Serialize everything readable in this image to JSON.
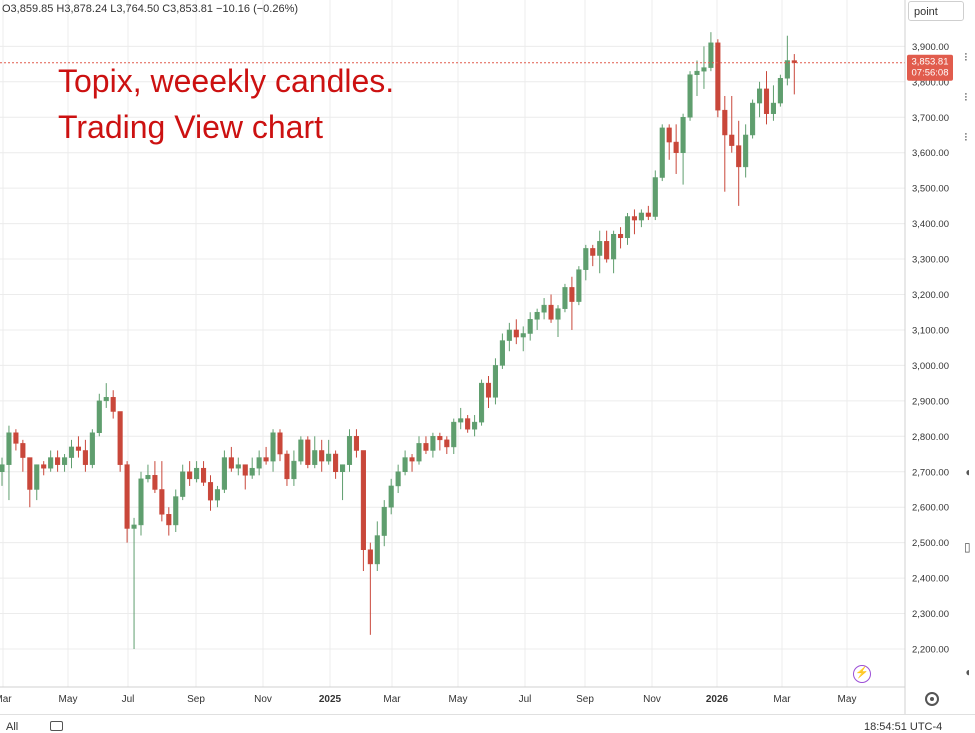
{
  "header": {
    "ohlc": "O3,859.85 H3,878.24 L3,764.50 C3,853.81 −10.16 (−0.26%)"
  },
  "annotation": {
    "line1": "Topix, weeekly candles.",
    "line2": "Trading View chart"
  },
  "price_scale": {
    "unit": "point",
    "last_price": "3,853.81",
    "countdown": "07:56:08"
  },
  "bottom_bar": {
    "range": "All",
    "clock": "18:54:51 UTC-4"
  },
  "colors": {
    "up": "#5f9e6e",
    "down": "#c9473a",
    "last_price_tag": "#e15c4d",
    "grid": "#ececec",
    "annotation": "#cc1111"
  },
  "icons": [
    "calendar-icon",
    "settings-icon",
    "bolt-icon"
  ],
  "chart_data": {
    "type": "candlestick",
    "title": "",
    "ylim": [
      2150,
      3950
    ],
    "yticks": [
      "2,200.00",
      "2,300.00",
      "2,400.00",
      "2,500.00",
      "2,600.00",
      "2,700.00",
      "2,800.00",
      "2,900.00",
      "3,000.00",
      "3,100.00",
      "3,200.00",
      "3,300.00",
      "3,400.00",
      "3,500.00",
      "3,600.00",
      "3,700.00",
      "3,800.00",
      "3,900.00"
    ],
    "xticks": [
      "Mar",
      "May",
      "Jul",
      "Sep",
      "Nov",
      "2025",
      "Mar",
      "May",
      "Jul",
      "Sep",
      "Nov",
      "2026",
      "Mar",
      "May"
    ],
    "grid": true,
    "candles": [
      [
        2700,
        2740,
        2660,
        2720
      ],
      [
        2720,
        2830,
        2620,
        2810
      ],
      [
        2810,
        2820,
        2760,
        2780
      ],
      [
        2780,
        2790,
        2700,
        2740
      ],
      [
        2740,
        2740,
        2600,
        2650
      ],
      [
        2650,
        2720,
        2620,
        2720
      ],
      [
        2720,
        2730,
        2690,
        2710
      ],
      [
        2710,
        2760,
        2700,
        2740
      ],
      [
        2740,
        2760,
        2700,
        2720
      ],
      [
        2720,
        2750,
        2700,
        2740
      ],
      [
        2740,
        2790,
        2710,
        2770
      ],
      [
        2770,
        2800,
        2740,
        2760
      ],
      [
        2760,
        2790,
        2700,
        2720
      ],
      [
        2720,
        2820,
        2710,
        2810
      ],
      [
        2810,
        2920,
        2800,
        2900
      ],
      [
        2900,
        2950,
        2880,
        2910
      ],
      [
        2910,
        2930,
        2850,
        2870
      ],
      [
        2870,
        2870,
        2700,
        2720
      ],
      [
        2720,
        2730,
        2500,
        2540
      ],
      [
        2540,
        2570,
        2200,
        2550
      ],
      [
        2550,
        2700,
        2520,
        2680
      ],
      [
        2680,
        2720,
        2670,
        2690
      ],
      [
        2690,
        2730,
        2640,
        2650
      ],
      [
        2650,
        2730,
        2560,
        2580
      ],
      [
        2580,
        2600,
        2520,
        2550
      ],
      [
        2550,
        2650,
        2530,
        2630
      ],
      [
        2630,
        2720,
        2620,
        2700
      ],
      [
        2700,
        2730,
        2660,
        2680
      ],
      [
        2680,
        2730,
        2670,
        2710
      ],
      [
        2710,
        2730,
        2660,
        2670
      ],
      [
        2670,
        2690,
        2590,
        2620
      ],
      [
        2620,
        2660,
        2600,
        2650
      ],
      [
        2650,
        2760,
        2640,
        2740
      ],
      [
        2740,
        2770,
        2700,
        2710
      ],
      [
        2710,
        2740,
        2690,
        2720
      ],
      [
        2720,
        2720,
        2650,
        2690
      ],
      [
        2690,
        2740,
        2680,
        2710
      ],
      [
        2710,
        2760,
        2690,
        2740
      ],
      [
        2740,
        2770,
        2720,
        2730
      ],
      [
        2730,
        2820,
        2700,
        2810
      ],
      [
        2810,
        2820,
        2730,
        2750
      ],
      [
        2750,
        2760,
        2660,
        2680
      ],
      [
        2680,
        2760,
        2660,
        2730
      ],
      [
        2730,
        2800,
        2720,
        2790
      ],
      [
        2790,
        2800,
        2710,
        2720
      ],
      [
        2720,
        2800,
        2710,
        2760
      ],
      [
        2760,
        2790,
        2700,
        2730
      ],
      [
        2730,
        2790,
        2720,
        2750
      ],
      [
        2750,
        2760,
        2680,
        2700
      ],
      [
        2700,
        2720,
        2620,
        2720
      ],
      [
        2720,
        2820,
        2700,
        2800
      ],
      [
        2800,
        2820,
        2740,
        2760
      ],
      [
        2760,
        2760,
        2420,
        2480
      ],
      [
        2480,
        2500,
        2240,
        2440
      ],
      [
        2440,
        2560,
        2420,
        2520
      ],
      [
        2520,
        2620,
        2490,
        2600
      ],
      [
        2600,
        2680,
        2580,
        2660
      ],
      [
        2660,
        2720,
        2640,
        2700
      ],
      [
        2700,
        2760,
        2690,
        2740
      ],
      [
        2740,
        2750,
        2700,
        2730
      ],
      [
        2730,
        2800,
        2720,
        2780
      ],
      [
        2780,
        2800,
        2750,
        2760
      ],
      [
        2760,
        2810,
        2740,
        2800
      ],
      [
        2800,
        2810,
        2760,
        2790
      ],
      [
        2790,
        2800,
        2750,
        2770
      ],
      [
        2770,
        2850,
        2750,
        2840
      ],
      [
        2840,
        2880,
        2820,
        2850
      ],
      [
        2850,
        2860,
        2810,
        2820
      ],
      [
        2820,
        2860,
        2800,
        2840
      ],
      [
        2840,
        2960,
        2830,
        2950
      ],
      [
        2950,
        2970,
        2880,
        2910
      ],
      [
        2910,
        3020,
        2890,
        3000
      ],
      [
        3000,
        3090,
        2990,
        3070
      ],
      [
        3070,
        3120,
        3040,
        3100
      ],
      [
        3100,
        3130,
        3060,
        3080
      ],
      [
        3080,
        3110,
        3040,
        3090
      ],
      [
        3090,
        3150,
        3070,
        3130
      ],
      [
        3130,
        3160,
        3100,
        3150
      ],
      [
        3150,
        3190,
        3130,
        3170
      ],
      [
        3170,
        3200,
        3120,
        3130
      ],
      [
        3130,
        3170,
        3080,
        3160
      ],
      [
        3160,
        3230,
        3150,
        3220
      ],
      [
        3220,
        3250,
        3100,
        3180
      ],
      [
        3180,
        3280,
        3170,
        3270
      ],
      [
        3270,
        3340,
        3240,
        3330
      ],
      [
        3330,
        3340,
        3280,
        3310
      ],
      [
        3310,
        3380,
        3260,
        3350
      ],
      [
        3350,
        3380,
        3290,
        3300
      ],
      [
        3300,
        3380,
        3260,
        3370
      ],
      [
        3370,
        3390,
        3330,
        3360
      ],
      [
        3360,
        3430,
        3340,
        3420
      ],
      [
        3420,
        3440,
        3370,
        3410
      ],
      [
        3410,
        3440,
        3390,
        3430
      ],
      [
        3430,
        3450,
        3410,
        3420
      ],
      [
        3420,
        3550,
        3410,
        3530
      ],
      [
        3530,
        3680,
        3520,
        3670
      ],
      [
        3670,
        3680,
        3580,
        3630
      ],
      [
        3630,
        3680,
        3540,
        3600
      ],
      [
        3600,
        3710,
        3510,
        3700
      ],
      [
        3700,
        3830,
        3690,
        3820
      ],
      [
        3820,
        3860,
        3760,
        3830
      ],
      [
        3830,
        3900,
        3780,
        3840
      ],
      [
        3840,
        3940,
        3830,
        3910
      ],
      [
        3910,
        3920,
        3700,
        3720
      ],
      [
        3720,
        3760,
        3490,
        3650
      ],
      [
        3650,
        3760,
        3600,
        3620
      ],
      [
        3620,
        3690,
        3450,
        3560
      ],
      [
        3560,
        3680,
        3530,
        3650
      ],
      [
        3650,
        3750,
        3640,
        3740
      ],
      [
        3740,
        3800,
        3700,
        3780
      ],
      [
        3780,
        3830,
        3680,
        3710
      ],
      [
        3710,
        3790,
        3690,
        3740
      ],
      [
        3740,
        3820,
        3730,
        3810
      ],
      [
        3810,
        3930,
        3790,
        3860
      ],
      [
        3859.85,
        3878.24,
        3764.5,
        3853.81
      ]
    ]
  }
}
